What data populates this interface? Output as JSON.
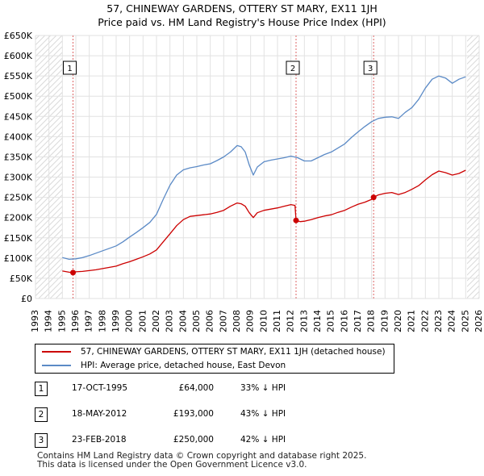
{
  "title_line1": "57, CHINEWAY GARDENS, OTTERY ST MARY, EX11 1JH",
  "title_line2": "Price paid vs. HM Land Registry's House Price Index (HPI)",
  "colors": {
    "price_paid": "#cc0000",
    "hpi": "#5b8ac6",
    "marker_line": "#dd6666",
    "grid": "#e2e2e2",
    "hatch": "#d9d9d9"
  },
  "chart_data": {
    "type": "line",
    "title": "57, CHINEWAY GARDENS, OTTERY ST MARY, EX11 1JH",
    "subtitle": "Price paid vs. HM Land Registry's House Price Index (HPI)",
    "xlim": [
      1993,
      2026
    ],
    "ylim": [
      0,
      650000
    ],
    "x_ticks": [
      1993,
      1994,
      1995,
      1996,
      1997,
      1998,
      1999,
      2000,
      2001,
      2002,
      2003,
      2004,
      2005,
      2006,
      2007,
      2008,
      2009,
      2010,
      2011,
      2012,
      2013,
      2014,
      2015,
      2016,
      2017,
      2018,
      2019,
      2020,
      2021,
      2022,
      2023,
      2024,
      2025,
      2026
    ],
    "y_ticks": [
      {
        "value": 0,
        "label": "£0"
      },
      {
        "value": 50000,
        "label": "£50K"
      },
      {
        "value": 100000,
        "label": "£100K"
      },
      {
        "value": 150000,
        "label": "£150K"
      },
      {
        "value": 200000,
        "label": "£200K"
      },
      {
        "value": 250000,
        "label": "£250K"
      },
      {
        "value": 300000,
        "label": "£300K"
      },
      {
        "value": 350000,
        "label": "£350K"
      },
      {
        "value": 400000,
        "label": "£400K"
      },
      {
        "value": 450000,
        "label": "£450K"
      },
      {
        "value": 500000,
        "label": "£500K"
      },
      {
        "value": 550000,
        "label": "£550K"
      },
      {
        "value": 600000,
        "label": "£600K"
      },
      {
        "value": 650000,
        "label": "£650K"
      }
    ],
    "hatched_ranges": [
      [
        1993,
        1995.0
      ],
      [
        2025.1,
        2026
      ]
    ],
    "series": [
      {
        "name": "57, CHINEWAY GARDENS, OTTERY ST MARY, EX11 1JH (detached house)",
        "x": [
          1995.0,
          1995.5,
          1995.79,
          1996.0,
          1996.5,
          1997.0,
          1997.5,
          1998.0,
          1998.5,
          1999.0,
          1999.5,
          2000.0,
          2000.5,
          2001.0,
          2001.5,
          2002.0,
          2002.5,
          2003.0,
          2003.5,
          2004.0,
          2004.5,
          2005.0,
          2005.5,
          2006.0,
          2006.5,
          2007.0,
          2007.5,
          2008.0,
          2008.3,
          2008.6,
          2008.9,
          2009.2,
          2009.5,
          2010.0,
          2010.5,
          2011.0,
          2011.5,
          2012.0,
          2012.3,
          2012.38,
          2012.7,
          2013.0,
          2013.5,
          2014.0,
          2014.5,
          2015.0,
          2015.5,
          2016.0,
          2016.5,
          2017.0,
          2017.5,
          2018.0,
          2018.15,
          2018.5,
          2019.0,
          2019.5,
          2020.0,
          2020.5,
          2021.0,
          2021.5,
          2022.0,
          2022.5,
          2023.0,
          2023.5,
          2024.0,
          2024.5,
          2025.0
        ],
        "y": [
          68000,
          65000,
          64000,
          66000,
          67000,
          69000,
          71000,
          74000,
          77000,
          80000,
          86000,
          91000,
          97000,
          103000,
          110000,
          120000,
          140000,
          160000,
          180000,
          195000,
          203000,
          205000,
          207000,
          209000,
          213000,
          218000,
          228000,
          236000,
          234000,
          228000,
          212000,
          200000,
          212000,
          218000,
          221000,
          224000,
          228000,
          232000,
          230000,
          193000,
          190000,
          191000,
          195000,
          200000,
          204000,
          207000,
          213000,
          218000,
          226000,
          233000,
          238000,
          245000,
          250000,
          256000,
          260000,
          262000,
          257000,
          262000,
          270000,
          279000,
          293000,
          306000,
          315000,
          311000,
          305000,
          309000,
          317000
        ]
      },
      {
        "name": "HPI: Average price, detached house, East Devon",
        "x": [
          1995.0,
          1995.5,
          1996.0,
          1996.5,
          1997.0,
          1997.5,
          1998.0,
          1998.5,
          1999.0,
          1999.5,
          2000.0,
          2000.5,
          2001.0,
          2001.5,
          2002.0,
          2002.5,
          2003.0,
          2003.5,
          2004.0,
          2004.5,
          2005.0,
          2005.5,
          2006.0,
          2006.5,
          2007.0,
          2007.5,
          2008.0,
          2008.3,
          2008.6,
          2008.9,
          2009.2,
          2009.5,
          2010.0,
          2010.5,
          2011.0,
          2011.5,
          2012.0,
          2012.5,
          2013.0,
          2013.5,
          2014.0,
          2014.5,
          2015.0,
          2015.5,
          2016.0,
          2016.5,
          2017.0,
          2017.5,
          2018.0,
          2018.5,
          2019.0,
          2019.5,
          2020.0,
          2020.5,
          2021.0,
          2021.5,
          2022.0,
          2022.5,
          2023.0,
          2023.5,
          2024.0,
          2024.5,
          2025.0
        ],
        "y": [
          101000,
          97000,
          98000,
          101000,
          106000,
          112000,
          118000,
          124000,
          130000,
          140000,
          152000,
          163000,
          175000,
          188000,
          208000,
          245000,
          280000,
          305000,
          318000,
          323000,
          326000,
          330000,
          333000,
          341000,
          350000,
          362000,
          378000,
          375000,
          362000,
          330000,
          305000,
          325000,
          338000,
          342000,
          345000,
          348000,
          352000,
          348000,
          340000,
          340000,
          348000,
          356000,
          362000,
          372000,
          382000,
          398000,
          412000,
          425000,
          437000,
          445000,
          448000,
          449000,
          445000,
          460000,
          472000,
          492000,
          520000,
          542000,
          550000,
          545000,
          532000,
          542000,
          548000
        ]
      }
    ],
    "markers": [
      {
        "label": "1",
        "x": 1995.79,
        "y": 64000
      },
      {
        "label": "2",
        "x": 2012.38,
        "y": 193000
      },
      {
        "label": "3",
        "x": 2018.15,
        "y": 250000
      }
    ]
  },
  "legend": {
    "price_paid_label": "57, CHINEWAY GARDENS, OTTERY ST MARY, EX11 1JH (detached house)",
    "hpi_label": "HPI: Average price, detached house, East Devon"
  },
  "sales": [
    {
      "num": "1",
      "date": "17-OCT-1995",
      "price": "£64,000",
      "hpi": "33% ↓ HPI"
    },
    {
      "num": "2",
      "date": "18-MAY-2012",
      "price": "£193,000",
      "hpi": "43% ↓ HPI"
    },
    {
      "num": "3",
      "date": "23-FEB-2018",
      "price": "£250,000",
      "hpi": "42% ↓ HPI"
    }
  ],
  "footer": {
    "line1": "Contains HM Land Registry data © Crown copyright and database right 2025.",
    "line2": "This data is licensed under the Open Government Licence v3.0."
  }
}
